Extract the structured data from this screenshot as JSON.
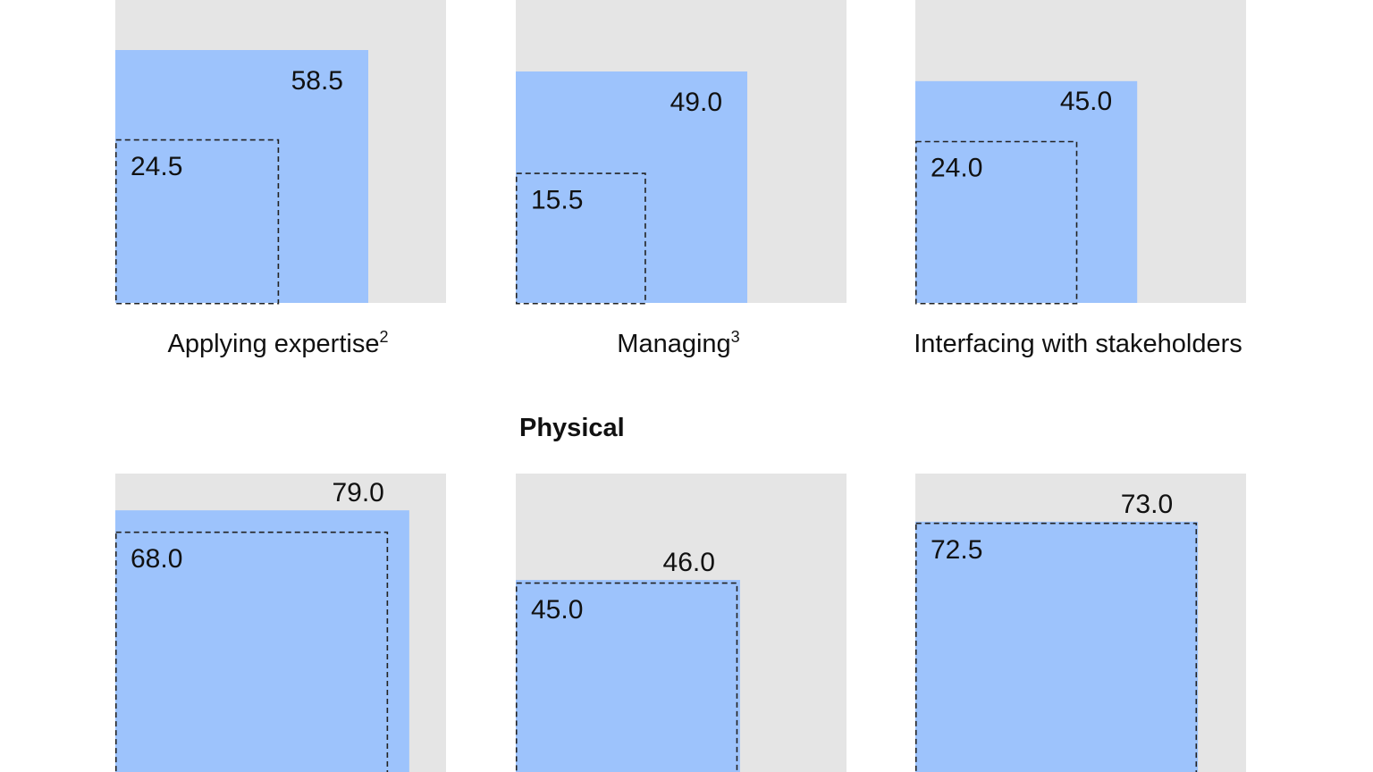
{
  "chart_data": {
    "type": "bar",
    "colors": {
      "background_square": "#e5e5e5",
      "bar_fill": "#9dc3fc",
      "dashed_outline": "#222222",
      "text": "#111111"
    },
    "scale_max": 100,
    "groups": [
      {
        "title": "",
        "panels": [
          {
            "category": "Applying expertise",
            "footnote": "2",
            "value": 58.5,
            "value_label": "58.5",
            "inner_value": 24.5,
            "inner_label": "24.5"
          },
          {
            "category": "Managing",
            "footnote": "3",
            "value": 49.0,
            "value_label": "49.0",
            "inner_value": 15.5,
            "inner_label": "15.5"
          },
          {
            "category": "Interfacing with stakeholders",
            "footnote": "",
            "value": 45.0,
            "value_label": "45.0",
            "inner_value": 24.0,
            "inner_label": "24.0"
          }
        ]
      },
      {
        "title": "Physical",
        "panels": [
          {
            "category": "",
            "footnote": "",
            "value": 79.0,
            "value_label": "79.0",
            "inner_value": 68.0,
            "inner_label": "68.0"
          },
          {
            "category": "",
            "footnote": "",
            "value": 46.0,
            "value_label": "46.0",
            "inner_value": 45.0,
            "inner_label": "45.0"
          },
          {
            "category": "",
            "footnote": "",
            "value": 73.0,
            "value_label": "73.0",
            "inner_value": 72.5,
            "inner_label": "72.5"
          }
        ]
      }
    ]
  }
}
